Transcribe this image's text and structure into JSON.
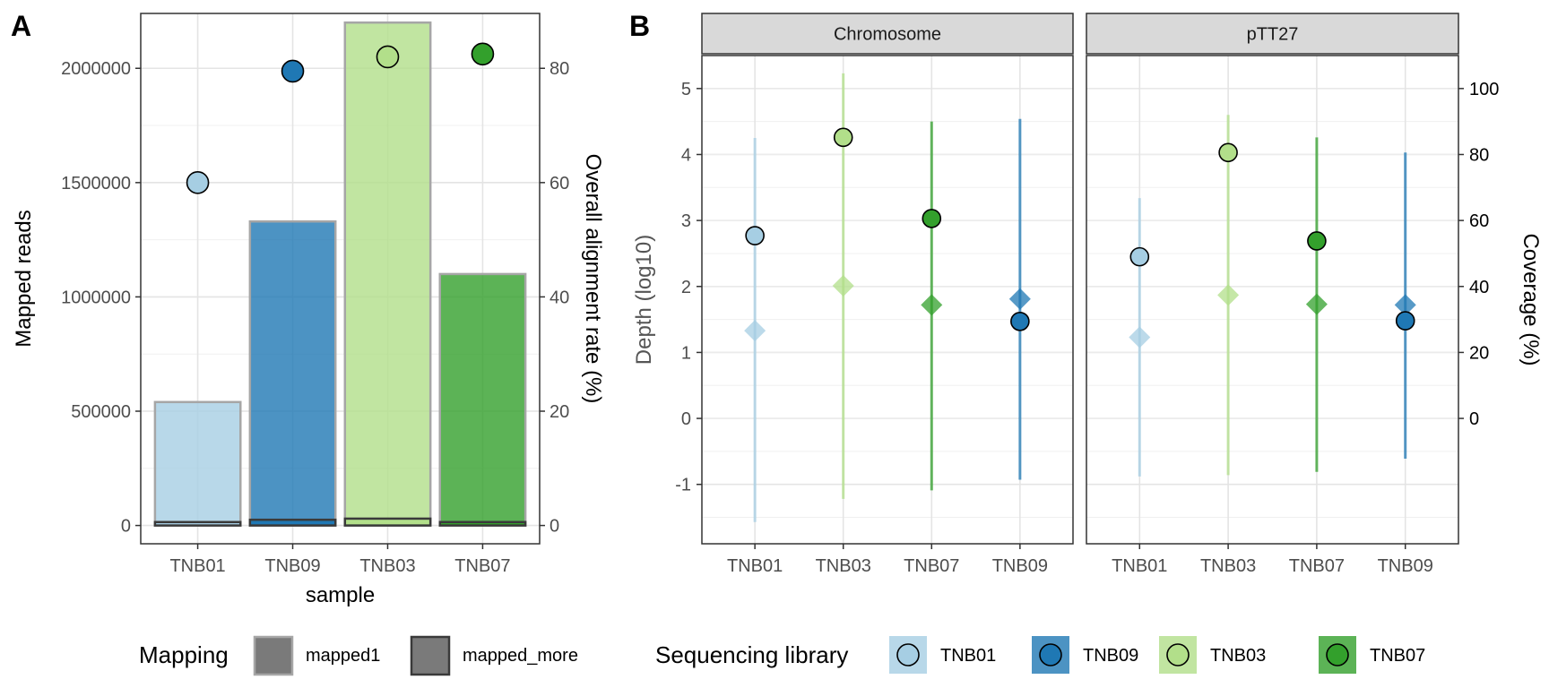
{
  "colors": {
    "TNB01": "#a6cee3",
    "TNB09": "#1f78b4",
    "TNB03": "#b2df8a",
    "TNB07": "#33a02c"
  },
  "chart_data": [
    {
      "panel": "A",
      "type": "bar",
      "xlabel": "sample",
      "ylabel": "Mapped reads",
      "y2label": "Overall alignment rate (%)",
      "categories": [
        "TNB01",
        "TNB09",
        "TNB03",
        "TNB07"
      ],
      "ylim": [
        -80000,
        2240000
      ],
      "yticks": [
        0,
        500000,
        1000000,
        1500000,
        2000000
      ],
      "y2lim": [
        -3.2,
        89.6
      ],
      "y2ticks": [
        0,
        20,
        40,
        60,
        80
      ],
      "series": [
        {
          "name": "mapped1",
          "values": [
            540000,
            1330000,
            2200000,
            1100000
          ]
        },
        {
          "name": "mapped_more",
          "values": [
            15000,
            25000,
            30000,
            15000
          ]
        },
        {
          "name": "Overall alignment rate",
          "axis": "right",
          "values": [
            60,
            79.5,
            82,
            82.5
          ]
        }
      ]
    },
    {
      "panel": "B",
      "type": "scatter",
      "facets": [
        "Chromosome",
        "pTT27"
      ],
      "ylabel": "Depth (log10)",
      "y2label": "Coverage (%)",
      "categories": [
        "TNB01",
        "TNB03",
        "TNB07",
        "TNB09"
      ],
      "ylim": [
        -1.9,
        5.5
      ],
      "yticks": [
        -1,
        0,
        1,
        2,
        3,
        4,
        5
      ],
      "y2ticks": [
        0,
        20,
        40,
        60,
        80,
        100
      ],
      "y2scale": "coverage = depth * 20",
      "series": {
        "Chromosome": [
          {
            "sample": "TNB01",
            "coverage_log10": 2.77,
            "depth_mean": 1.33,
            "depth_lo": -1.57,
            "depth_hi": 4.25
          },
          {
            "sample": "TNB03",
            "coverage_log10": 4.26,
            "depth_mean": 2.01,
            "depth_lo": -1.22,
            "depth_hi": 5.23
          },
          {
            "sample": "TNB07",
            "coverage_log10": 3.03,
            "depth_mean": 1.72,
            "depth_lo": -1.09,
            "depth_hi": 4.5
          },
          {
            "sample": "TNB09",
            "coverage_log10": 1.47,
            "depth_mean": 1.81,
            "depth_lo": -0.93,
            "depth_hi": 4.54
          }
        ],
        "pTT27": [
          {
            "sample": "TNB01",
            "coverage_log10": 2.45,
            "depth_mean": 1.23,
            "depth_lo": -0.88,
            "depth_hi": 3.34
          },
          {
            "sample": "TNB03",
            "coverage_log10": 4.03,
            "depth_mean": 1.87,
            "depth_lo": -0.86,
            "depth_hi": 4.6
          },
          {
            "sample": "TNB07",
            "coverage_log10": 2.69,
            "depth_mean": 1.73,
            "depth_lo": -0.81,
            "depth_hi": 4.26
          },
          {
            "sample": "TNB09",
            "coverage_log10": 1.48,
            "depth_mean": 1.72,
            "depth_lo": -0.61,
            "depth_hi": 4.03
          }
        ]
      }
    }
  ],
  "legend": {
    "mapping_title": "Mapping",
    "mapping_items": [
      "mapped1",
      "mapped_more"
    ],
    "library_title": "Sequencing library",
    "library_items": [
      "TNB01",
      "TNB09",
      "TNB03",
      "TNB07"
    ]
  }
}
